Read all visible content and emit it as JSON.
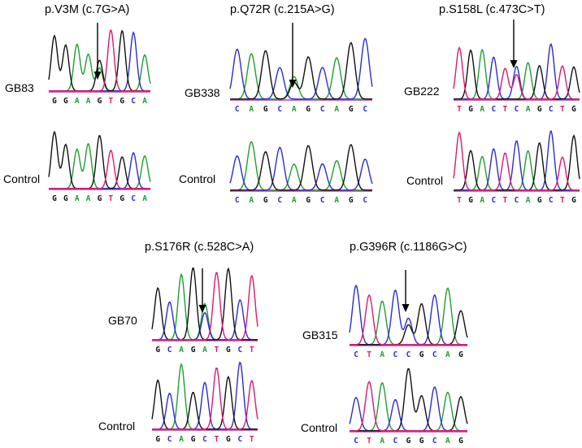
{
  "colors": {
    "A": "#1f9e2f",
    "C": "#2b2bd6",
    "G": "#111111",
    "T": "#e0186e",
    "baseline": "#c23aa0",
    "marker": "#3cc8e6"
  },
  "panels": [
    {
      "title": "p.V3M (c.7G>A)",
      "sample_label": "GB83",
      "control_label": "Control",
      "sample_seq": "GGAAGTGCA",
      "control_seq": "GGAAGTGCA",
      "het_index": 4,
      "het_base": "A"
    },
    {
      "title": "p.Q72R (c.215A>G)",
      "sample_label": "GB338",
      "control_label": "Control",
      "sample_seq": "CAGCAGCAGC",
      "control_seq": "CAGCAGCAGC",
      "het_index": 4,
      "het_base": "G"
    },
    {
      "title": "p.S158L (c.473C>T)",
      "sample_label": "GB222",
      "control_label": "Control",
      "sample_seq": "TGACTCAGCTG",
      "control_seq": "TGACTCAGCTG",
      "het_index": 5,
      "het_base": "T"
    },
    {
      "title": "p.S176R (c.528C>A)",
      "sample_label": "GB70",
      "control_label": "Control",
      "sample_seq": "GCAGATGCT",
      "control_seq": "GCAGCTGCT",
      "het_index": 4,
      "het_base": "C"
    },
    {
      "title": "p.G396R (c.1186G>C)",
      "sample_label": "GB315",
      "control_label": "Control",
      "sample_seq": "CTACCGCAG",
      "control_seq": "CTACGGCAG",
      "het_index": 4,
      "het_base": "G"
    }
  ]
}
